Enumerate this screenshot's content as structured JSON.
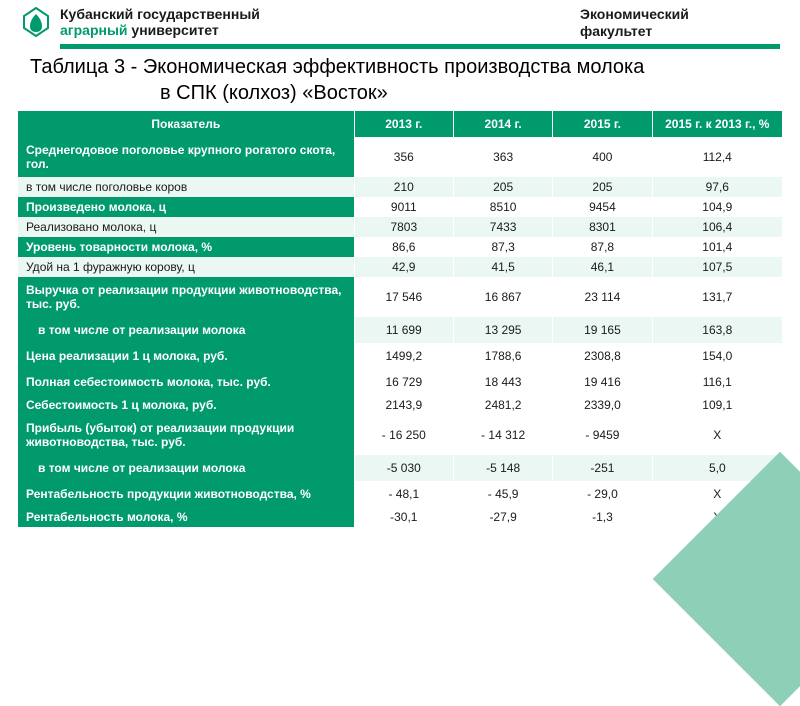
{
  "header": {
    "uni_line1": "Кубанский государственный",
    "uni_line2_accent": "аграрный",
    "uni_line2_rest": " университет",
    "faculty_line1": "Экономический",
    "faculty_line2": "факультет",
    "accent_color": "#009a6c"
  },
  "title": "Таблица 3 -  Экономическая эффективность производства молока",
  "subtitle": "в СПК (колхоз) «Восток»",
  "table": {
    "columns": [
      "Показатель",
      "2013 г.",
      "2014 г.",
      "2015 г.",
      "2015 г. к 2013 г., %"
    ],
    "header_bg": "#009a6c",
    "header_fg": "#ffffff",
    "section_bg": "#009a6c",
    "section_fg": "#ffffff",
    "alt_bg": "#eaf7f2",
    "plain_bg": "#ffffff",
    "rows": [
      {
        "style": "sec tall",
        "cells": [
          "Среднегодовое поголовье крупного рогатого скота, гол.",
          "356",
          "363",
          "400",
          "112,4"
        ]
      },
      {
        "style": "alt",
        "cells": [
          "в том числе поголовье коров",
          "210",
          "205",
          "205",
          "97,6"
        ]
      },
      {
        "style": "sec",
        "cells": [
          "Произведено молока, ц",
          "9011",
          "8510",
          "9454",
          "104,9"
        ]
      },
      {
        "style": "alt",
        "cells": [
          "Реализовано молока, ц",
          "7803",
          "7433",
          "8301",
          "106,4"
        ]
      },
      {
        "style": "sec",
        "cells": [
          "Уровень товарности молока, %",
          "86,6",
          "87,3",
          "87,8",
          "101,4"
        ]
      },
      {
        "style": "alt",
        "cells": [
          "Удой на 1 фуражную корову, ц",
          "42,9",
          "41,5",
          "46,1",
          "107,5"
        ]
      },
      {
        "style": "sec tall",
        "cells": [
          "Выручка от реализации продукции животноводства, тыс. руб.",
          "17 546",
          "16 867",
          "23 114",
          "131,7"
        ]
      },
      {
        "style": "sub tall",
        "cells": [
          "в том числе от реализации молока",
          "11 699",
          "13 295",
          "19 165",
          "163,8"
        ]
      },
      {
        "style": "sec tall",
        "cells": [
          "Цена реализации 1 ц молока, руб.",
          "1499,2",
          "1788,6",
          "2308,8",
          "154,0"
        ]
      },
      {
        "style": "sec tall",
        "cells": [
          "Полная себестоимость молока, тыс. руб.",
          "16 729",
          "18 443",
          "19 416",
          "116,1"
        ]
      },
      {
        "style": "sec",
        "cells": [
          "Себестоимость 1 ц молока, руб.",
          "2143,9",
          "2481,2",
          "2339,0",
          "109,1"
        ]
      },
      {
        "style": "sec tall",
        "cells": [
          "Прибыль (убыток) от реализации продукции животноводства, тыс. руб.",
          "- 16 250",
          "- 14 312",
          "- 9459",
          "Х"
        ]
      },
      {
        "style": "sub tall",
        "cells": [
          "в том числе от реализации молока",
          "-5 030",
          "-5 148",
          "-251",
          "5,0"
        ]
      },
      {
        "style": "sec tall",
        "cells": [
          "Рентабельность продукции животноводства, %",
          "- 48,1",
          "- 45,9",
          "- 29,0",
          "Х"
        ]
      },
      {
        "style": "sec",
        "cells": [
          "Рентабельность молока, %",
          "-30,1",
          "-27,9",
          "-1,3",
          "Х"
        ]
      }
    ]
  }
}
